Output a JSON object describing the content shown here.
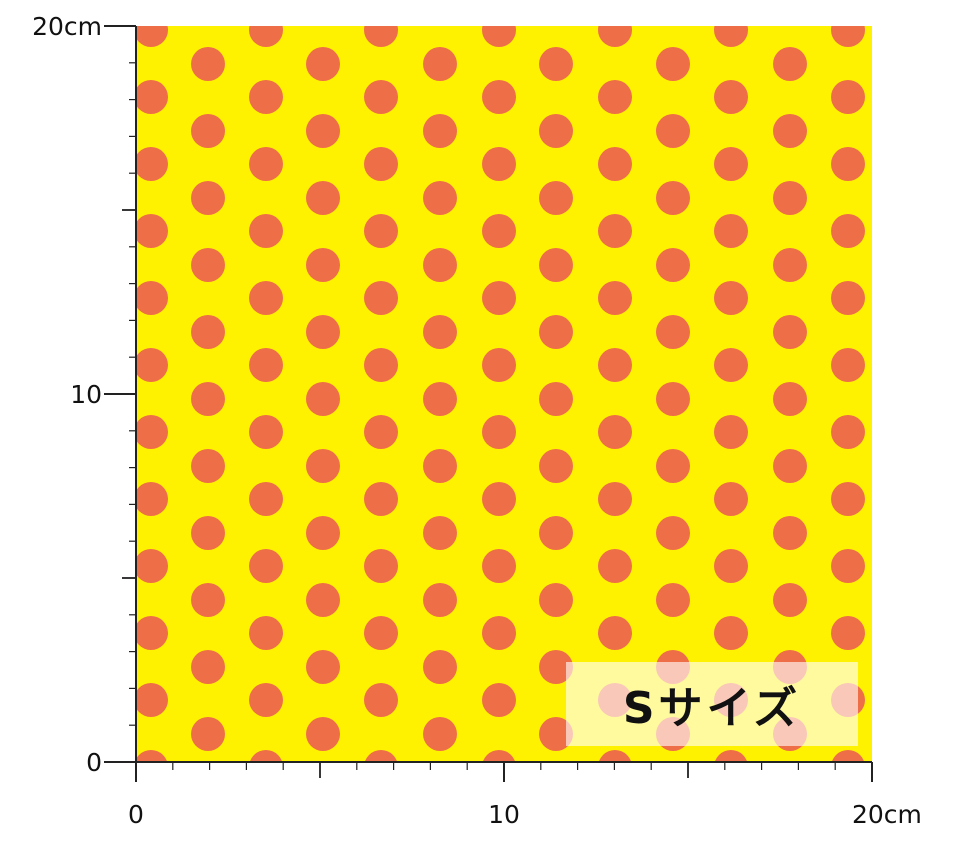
{
  "swatch": {
    "background_color": "#FFF200",
    "dot_color": "#EE6E48",
    "size_badge_label": "Sサイズ"
  },
  "ruler": {
    "unit": "cm",
    "range": [
      0,
      20
    ],
    "major_tick_step": 5,
    "minor_tick_step": 1,
    "y_labels": [
      {
        "value": 20,
        "text": "20cm"
      },
      {
        "value": 10,
        "text": "10"
      },
      {
        "value": 0,
        "text": "0"
      }
    ],
    "x_labels": [
      {
        "value": 0,
        "text": "0"
      },
      {
        "value": 10,
        "text": "10"
      },
      {
        "value": 20,
        "text": "20cm"
      }
    ]
  }
}
